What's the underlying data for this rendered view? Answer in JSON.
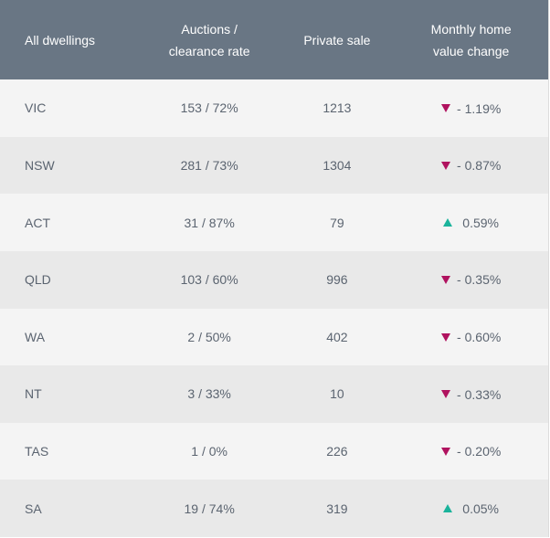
{
  "table": {
    "headers": {
      "region": "All dwellings",
      "auctions_line1": "Auctions /",
      "auctions_line2": "clearance rate",
      "private_sale": "Private sale",
      "change_line1": "Monthly home",
      "change_line2": "value change"
    },
    "rows": [
      {
        "region": "VIC",
        "auctions": "153 / 72%",
        "private_sale": "1213",
        "direction": "down",
        "sign": "-",
        "change": "1.19%"
      },
      {
        "region": "NSW",
        "auctions": "281 / 73%",
        "private_sale": "1304",
        "direction": "down",
        "sign": "-",
        "change": "0.87%"
      },
      {
        "region": "ACT",
        "auctions": "31 / 87%",
        "private_sale": "79",
        "direction": "up",
        "sign": "",
        "change": "0.59%"
      },
      {
        "region": "QLD",
        "auctions": "103 / 60%",
        "private_sale": "996",
        "direction": "down",
        "sign": "-",
        "change": "0.35%"
      },
      {
        "region": "WA",
        "auctions": "2 / 50%",
        "private_sale": "402",
        "direction": "down",
        "sign": "-",
        "change": "0.60%"
      },
      {
        "region": "NT",
        "auctions": "3 / 33%",
        "private_sale": "10",
        "direction": "down",
        "sign": "-",
        "change": "0.33%"
      },
      {
        "region": "TAS",
        "auctions": "1 / 0%",
        "private_sale": "226",
        "direction": "down",
        "sign": "-",
        "change": "0.20%"
      },
      {
        "region": "SA",
        "auctions": "19 / 74%",
        "private_sale": "319",
        "direction": "up",
        "sign": "",
        "change": "0.05%"
      }
    ]
  },
  "colors": {
    "header_bg": "#697684",
    "down_arrow": "#b0125f",
    "up_arrow": "#1ab39b"
  },
  "icons": {
    "down": "triangle-down-icon",
    "up": "triangle-up-icon"
  }
}
